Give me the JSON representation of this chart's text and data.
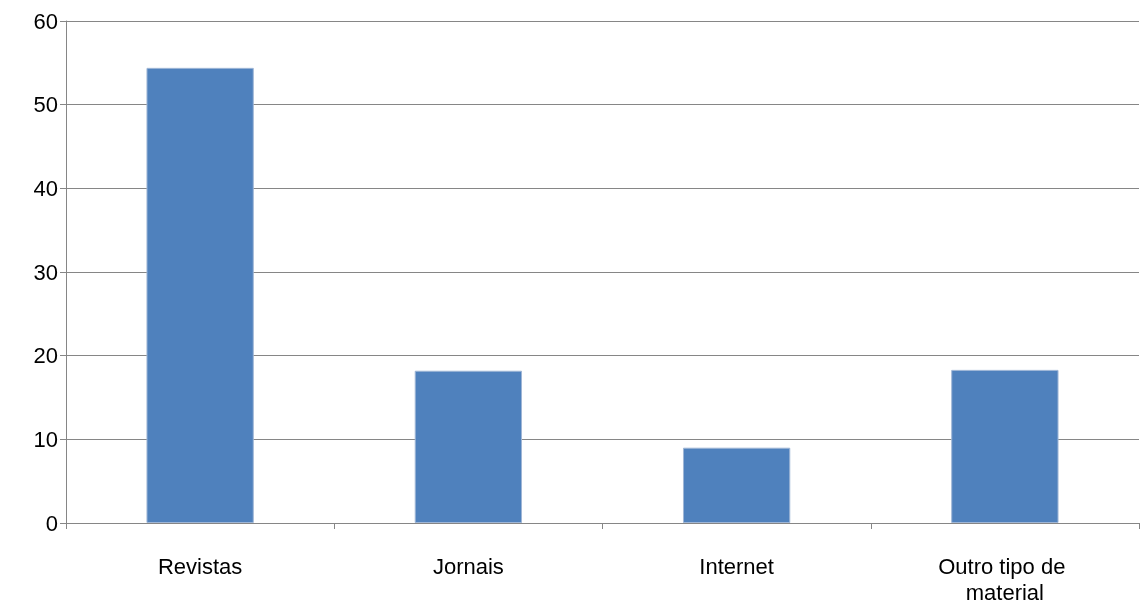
{
  "chart_data": {
    "type": "bar",
    "categories": [
      "Revistas",
      "Jornais",
      "Internet",
      "Outro tipo de material"
    ],
    "values": [
      54.4,
      18.2,
      9.0,
      18.3
    ],
    "color": "#4f81bd",
    "ylim": [
      0,
      60
    ],
    "yticks": [
      0,
      10,
      20,
      30,
      40,
      50,
      60
    ],
    "grid": "y"
  }
}
